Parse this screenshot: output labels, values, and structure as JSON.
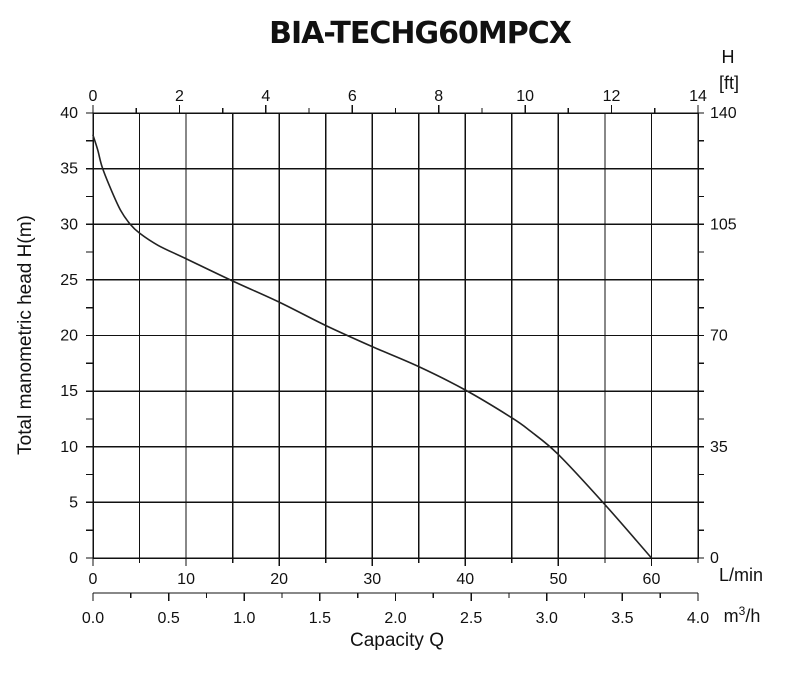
{
  "chart_data": {
    "type": "line",
    "title": "BIA-TECHG60MPCX",
    "ylabel": "Total manometric head H(m)",
    "xlabel": "Capacity Q",
    "x_units": "L/min",
    "x2_units": "m3/h",
    "right_axis_units": [
      "H",
      "[ft]"
    ],
    "grid": true,
    "x_range": [
      0,
      65
    ],
    "y_range": [
      0,
      40
    ],
    "top_range": [
      0,
      14
    ],
    "x2_range": [
      0.0,
      4.0
    ],
    "right_range": [
      0,
      140
    ],
    "x_ticks": [
      "0",
      "10",
      "20",
      "30",
      "40",
      "50",
      "60"
    ],
    "x_tick_values": [
      0,
      10,
      20,
      30,
      40,
      50,
      60
    ],
    "x2_ticks": [
      "0.0",
      "0.5",
      "1.0",
      "1.5",
      "2.0",
      "2.5",
      "3.0",
      "3.5",
      "4.0"
    ],
    "x2_tick_values": [
      0.0,
      0.5,
      1.0,
      1.5,
      2.0,
      2.5,
      3.0,
      3.5,
      4.0
    ],
    "top_ticks": [
      "0",
      "2",
      "4",
      "6",
      "8",
      "10",
      "12",
      "14"
    ],
    "top_tick_values": [
      0,
      2,
      4,
      6,
      8,
      10,
      12,
      14
    ],
    "y_ticks": [
      "0",
      "5",
      "10",
      "15",
      "20",
      "25",
      "30",
      "35",
      "40"
    ],
    "y_tick_values": [
      0,
      5,
      10,
      15,
      20,
      25,
      30,
      35,
      40
    ],
    "right_ticks": [
      "0",
      "35",
      "70",
      "105",
      "140"
    ],
    "right_tick_values": [
      0,
      35,
      70,
      105,
      140
    ],
    "series": [
      {
        "color": "#222222",
        "x": [
          0,
          0.5,
          1,
          2,
          3,
          4,
          5,
          7,
          10,
          15,
          20,
          25,
          30,
          35,
          40,
          45,
          47,
          50,
          55,
          60
        ],
        "y": [
          38,
          36.7,
          35.1,
          33.0,
          31.2,
          30.0,
          29.2,
          28.1,
          26.9,
          24.9,
          23.0,
          20.9,
          19.0,
          17.2,
          15.1,
          12.6,
          11.4,
          9.3,
          4.8,
          0
        ]
      }
    ]
  }
}
